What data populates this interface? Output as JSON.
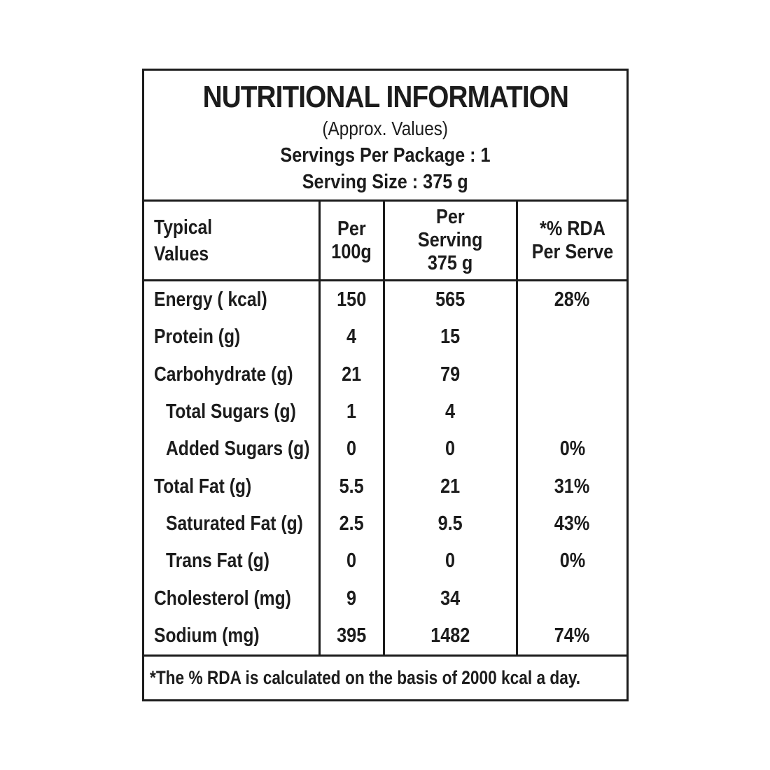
{
  "header": {
    "title": "NUTRITIONAL INFORMATION",
    "subtitle": "(Approx. Values)",
    "servings_per_package": "Servings Per Package : 1",
    "serving_size": "Serving Size : 375 g"
  },
  "columns": {
    "typical_values": {
      "line1": "Typical",
      "line2": "Values"
    },
    "per_100g": {
      "line1": "Per",
      "line2": "100g"
    },
    "per_serving": {
      "line1": "Per",
      "line2": "Serving",
      "line3": "375 g"
    },
    "rda": {
      "line1": "*% RDA",
      "line2": "Per Serve"
    }
  },
  "rows": [
    {
      "label": "Energy ( kcal)",
      "per_100g": "150",
      "per_serving": "565",
      "rda": "28%"
    },
    {
      "label": "Protein (g)",
      "per_100g": "4",
      "per_serving": "15",
      "rda": ""
    },
    {
      "label": "Carbohydrate (g)",
      "per_100g": "21",
      "per_serving": "79",
      "rda": ""
    },
    {
      "label": "Total Sugars (g)",
      "per_100g": "1",
      "per_serving": "4",
      "rda": ""
    },
    {
      "label": "Added Sugars (g)",
      "per_100g": "0",
      "per_serving": "0",
      "rda": "0%"
    },
    {
      "label": "Total Fat (g)",
      "per_100g": "5.5",
      "per_serving": "21",
      "rda": "31%"
    },
    {
      "label": "Saturated Fat (g)",
      "per_100g": "2.5",
      "per_serving": "9.5",
      "rda": "43%"
    },
    {
      "label": "Trans Fat (g)",
      "per_100g": "0",
      "per_serving": "0",
      "rda": "0%"
    },
    {
      "label": "Cholesterol (mg)",
      "per_100g": "9",
      "per_serving": "34",
      "rda": ""
    },
    {
      "label": "Sodium (mg)",
      "per_100g": "395",
      "per_serving": "1482",
      "rda": "74%"
    }
  ],
  "footer": {
    "note": "*The % RDA is calculated on the basis of 2000 kcal a day."
  },
  "colors": {
    "text": "#1c1c1c",
    "border": "#1c1c1c",
    "background": "#ffffff"
  }
}
